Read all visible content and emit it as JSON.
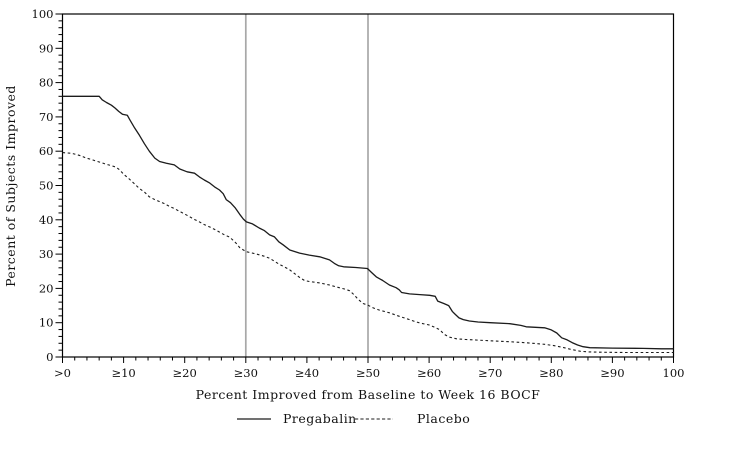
{
  "figure": {
    "background": "#ffffff",
    "axis_color": "#000000",
    "reference_line_color": "#a8a8a8",
    "curve_color": "#1c1c1c"
  },
  "chart_data": {
    "type": "line",
    "title": "",
    "xlabel": "Percent Improved from Baseline to Week 16 BOCF",
    "ylabel": "Percent of Subjects Improved",
    "xlim": [
      0,
      100
    ],
    "ylim": [
      0,
      100
    ],
    "grid": false,
    "legend_position": "bottom-center",
    "x_tick_values": [
      0,
      10,
      20,
      30,
      40,
      50,
      60,
      70,
      80,
      90,
      100
    ],
    "x_tick_labels": [
      ">0",
      "≥10",
      "≥20",
      "≥30",
      "≥40",
      "≥50",
      "≥60",
      "≥70",
      "≥80",
      "≥90",
      "100"
    ],
    "y_tick_values": [
      0,
      10,
      20,
      30,
      40,
      50,
      60,
      70,
      80,
      90,
      100
    ],
    "y_tick_labels": [
      "0",
      "10",
      "20",
      "30",
      "40",
      "50",
      "60",
      "70",
      "80",
      "90",
      "100"
    ],
    "minor_tick_step": 2,
    "reference_lines_x": [
      30,
      50
    ],
    "series": [
      {
        "name": "Pregabalin",
        "style": "solid",
        "points": [
          [
            0,
            76
          ],
          [
            6,
            76
          ],
          [
            6.5,
            75
          ],
          [
            7.2,
            74.2
          ],
          [
            8,
            73.4
          ],
          [
            8.6,
            72.6
          ],
          [
            9.2,
            71.6
          ],
          [
            9.8,
            70.8
          ],
          [
            10.6,
            70.5
          ],
          [
            11,
            69.2
          ],
          [
            11.8,
            66.8
          ],
          [
            12.6,
            64.6
          ],
          [
            13.4,
            62.2
          ],
          [
            14.2,
            60
          ],
          [
            15.1,
            58
          ],
          [
            15.9,
            57
          ],
          [
            17,
            56.5
          ],
          [
            18.3,
            56
          ],
          [
            19.2,
            54.8
          ],
          [
            20.4,
            54
          ],
          [
            21.6,
            53.6
          ],
          [
            22.4,
            52.5
          ],
          [
            23.2,
            51.6
          ],
          [
            24.1,
            50.7
          ],
          [
            24.9,
            49.6
          ],
          [
            25.7,
            48.7
          ],
          [
            26.3,
            47.6
          ],
          [
            26.8,
            45.9
          ],
          [
            27.5,
            45
          ],
          [
            28.3,
            43.4
          ],
          [
            29,
            41.6
          ],
          [
            29.6,
            40.2
          ],
          [
            30.1,
            39.4
          ],
          [
            31.1,
            38.8
          ],
          [
            32.2,
            37.6
          ],
          [
            33,
            36.9
          ],
          [
            33.9,
            35.6
          ],
          [
            34.7,
            35
          ],
          [
            35.4,
            33.6
          ],
          [
            36.1,
            32.7
          ],
          [
            37.2,
            31.2
          ],
          [
            38.8,
            30.3
          ],
          [
            40.4,
            29.7
          ],
          [
            42.1,
            29.2
          ],
          [
            43.7,
            28.3
          ],
          [
            44.5,
            27.3
          ],
          [
            45.2,
            26.6
          ],
          [
            46,
            26.3
          ],
          [
            48,
            26.1
          ],
          [
            49.9,
            25.8
          ],
          [
            50.6,
            24.6
          ],
          [
            51.4,
            23.3
          ],
          [
            52.4,
            22.3
          ],
          [
            53.5,
            21
          ],
          [
            54.6,
            20.2
          ],
          [
            55.1,
            19.6
          ],
          [
            55.5,
            18.8
          ],
          [
            56.8,
            18.4
          ],
          [
            58.5,
            18.2
          ],
          [
            60.1,
            18
          ],
          [
            61,
            17.7
          ],
          [
            61.4,
            16.3
          ],
          [
            62.4,
            15.6
          ],
          [
            63.2,
            15
          ],
          [
            63.8,
            13.3
          ],
          [
            64.3,
            12.4
          ],
          [
            64.9,
            11.4
          ],
          [
            65.6,
            10.9
          ],
          [
            66.6,
            10.5
          ],
          [
            68,
            10.2
          ],
          [
            70,
            10
          ],
          [
            73.2,
            9.7
          ],
          [
            75,
            9.2
          ],
          [
            75.9,
            8.8
          ],
          [
            78.9,
            8.5
          ],
          [
            80,
            7.9
          ],
          [
            80.9,
            7
          ],
          [
            81.7,
            5.6
          ],
          [
            82.6,
            5
          ],
          [
            83.4,
            4.2
          ],
          [
            84.3,
            3.5
          ],
          [
            85.2,
            3
          ],
          [
            86.3,
            2.7
          ],
          [
            90,
            2.6
          ],
          [
            95,
            2.5
          ],
          [
            98,
            2.4
          ],
          [
            100,
            2.4
          ]
        ]
      },
      {
        "name": "Placebo",
        "style": "dashed",
        "points": [
          [
            0,
            59.6
          ],
          [
            1.5,
            59.4
          ],
          [
            2.3,
            59
          ],
          [
            3.1,
            58.6
          ],
          [
            3.9,
            58
          ],
          [
            4.7,
            57.6
          ],
          [
            5.5,
            57.1
          ],
          [
            6.3,
            56.7
          ],
          [
            7.1,
            56.2
          ],
          [
            8,
            55.8
          ],
          [
            8.8,
            55.3
          ],
          [
            9.4,
            54.5
          ],
          [
            10,
            53.3
          ],
          [
            10.8,
            52.1
          ],
          [
            11.7,
            50.6
          ],
          [
            12.6,
            49.1
          ],
          [
            13.4,
            48.1
          ],
          [
            14.2,
            46.7
          ],
          [
            15.1,
            45.9
          ],
          [
            15.9,
            45.3
          ],
          [
            16.7,
            44.7
          ],
          [
            17.5,
            43.9
          ],
          [
            18.3,
            43.3
          ],
          [
            19.1,
            42.5
          ],
          [
            20,
            41.7
          ],
          [
            20.8,
            40.9
          ],
          [
            21.6,
            40.1
          ],
          [
            22.4,
            39.4
          ],
          [
            23.2,
            38.6
          ],
          [
            24.1,
            37.9
          ],
          [
            24.9,
            37.2
          ],
          [
            25.7,
            36.4
          ],
          [
            26.6,
            35.5
          ],
          [
            27.3,
            35
          ],
          [
            28,
            33.9
          ],
          [
            28.5,
            33
          ],
          [
            29,
            31.9
          ],
          [
            29.6,
            31.2
          ],
          [
            30.1,
            30.7
          ],
          [
            31.1,
            30.3
          ],
          [
            32.2,
            29.8
          ],
          [
            33,
            29.4
          ],
          [
            33.9,
            28.8
          ],
          [
            34.7,
            27.9
          ],
          [
            35.5,
            27
          ],
          [
            36.3,
            26.3
          ],
          [
            37.2,
            25.4
          ],
          [
            38,
            24.3
          ],
          [
            38.8,
            23.2
          ],
          [
            39.6,
            22.3
          ],
          [
            40.4,
            22
          ],
          [
            42.1,
            21.6
          ],
          [
            43.7,
            21
          ],
          [
            45.3,
            20.2
          ],
          [
            46.4,
            19.7
          ],
          [
            47,
            19.3
          ],
          [
            47.7,
            18.2
          ],
          [
            48.4,
            16.8
          ],
          [
            49.2,
            15.6
          ],
          [
            50,
            15.1
          ],
          [
            50.9,
            14.3
          ],
          [
            51.8,
            13.7
          ],
          [
            53.5,
            12.9
          ],
          [
            55.2,
            11.8
          ],
          [
            56.8,
            10.9
          ],
          [
            57.9,
            10.2
          ],
          [
            58.8,
            9.8
          ],
          [
            60.1,
            9.3
          ],
          [
            61,
            8.6
          ],
          [
            61.7,
            8
          ],
          [
            62.5,
            6.6
          ],
          [
            63.3,
            5.8
          ],
          [
            64.5,
            5.3
          ],
          [
            66,
            5.1
          ],
          [
            68.2,
            4.9
          ],
          [
            71.5,
            4.6
          ],
          [
            74.8,
            4.3
          ],
          [
            77,
            4
          ],
          [
            78.9,
            3.7
          ],
          [
            80.5,
            3.3
          ],
          [
            81.9,
            2.8
          ],
          [
            83.3,
            2.2
          ],
          [
            84.7,
            1.7
          ],
          [
            86,
            1.5
          ],
          [
            88,
            1.4
          ],
          [
            92,
            1.3
          ],
          [
            100,
            1.3
          ]
        ]
      }
    ]
  }
}
